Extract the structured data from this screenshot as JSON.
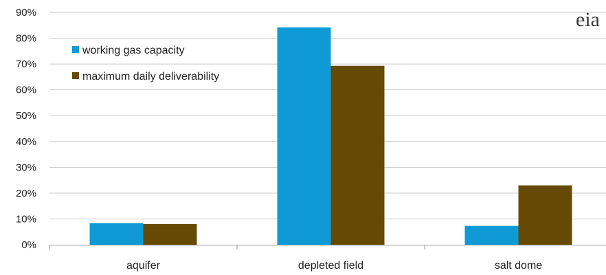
{
  "colors": {
    "working": "#0f9ad6",
    "max": "#654a06",
    "grid": "#c8c8c8",
    "axis": "#9a9a9a"
  },
  "watermark": "eia",
  "chart_data": {
    "type": "bar",
    "categories": [
      "aquifer",
      "depleted field",
      "salt dome"
    ],
    "series": [
      {
        "name": "working gas capacity",
        "values": [
          8.4,
          84.2,
          7.3
        ]
      },
      {
        "name": "maximum daily deliverability",
        "values": [
          8.0,
          69.3,
          23.0
        ]
      }
    ],
    "ylim": [
      0,
      90
    ],
    "yticks": [
      0,
      10,
      20,
      30,
      40,
      50,
      60,
      70,
      80,
      90
    ],
    "ytick_labels": [
      "0%",
      "10%",
      "20%",
      "30%",
      "40%",
      "50%",
      "60%",
      "70%",
      "80%",
      "90%"
    ],
    "grid": true,
    "legend_position": "top-left"
  }
}
